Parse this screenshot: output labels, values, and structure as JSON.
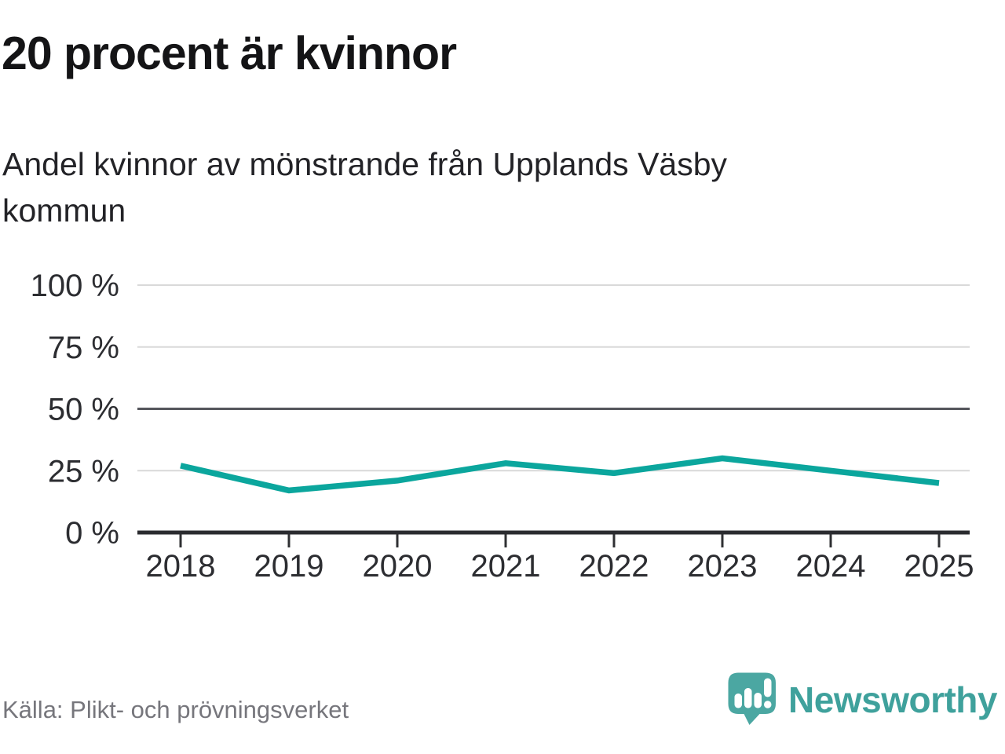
{
  "header": {
    "title": "20 procent är kvinnor",
    "subtitle": "Andel kvinnor av mönstrande från Upplands Väsby kommun",
    "subtitle_lines": [
      "Andel kvinnor av mönstrande från Upplands Väsby",
      "kommun"
    ]
  },
  "chart_data": {
    "type": "line",
    "title": "20 procent är kvinnor",
    "subtitle": "Andel kvinnor av mönstrande från Upplands Väsby kommun",
    "x": [
      "2018",
      "2019",
      "2020",
      "2021",
      "2022",
      "2023",
      "2024",
      "2025"
    ],
    "series": [
      {
        "values": [
          27,
          17,
          21,
          28,
          24,
          30,
          25,
          20
        ],
        "color": "#0ba69d",
        "unit": "%"
      }
    ],
    "xlabel": "",
    "ylabel": "",
    "ylim": [
      0,
      100
    ],
    "yticks": [
      {
        "value": 100,
        "label": "100 %"
      },
      {
        "value": 75,
        "label": "75 %"
      },
      {
        "value": 50,
        "label": "50 %"
      },
      {
        "value": 25,
        "label": "25 %"
      },
      {
        "value": 0,
        "label": "0 %"
      }
    ],
    "grid": "horizontal",
    "legend": "none",
    "emphasized_gridline_values": [
      50
    ],
    "baseline_value": 0
  },
  "footer": {
    "source": "Källa: Plikt- och prövningsverket",
    "brand": "Newsworthy",
    "logo_icon": "newsworthy-speech-bubble-bar-chart-icon"
  },
  "colors": {
    "line": "#0ba69d",
    "brand_teal": "#4ba7a2",
    "wordmark_teal": "#3fa19c",
    "source_gray": "#76767c"
  }
}
